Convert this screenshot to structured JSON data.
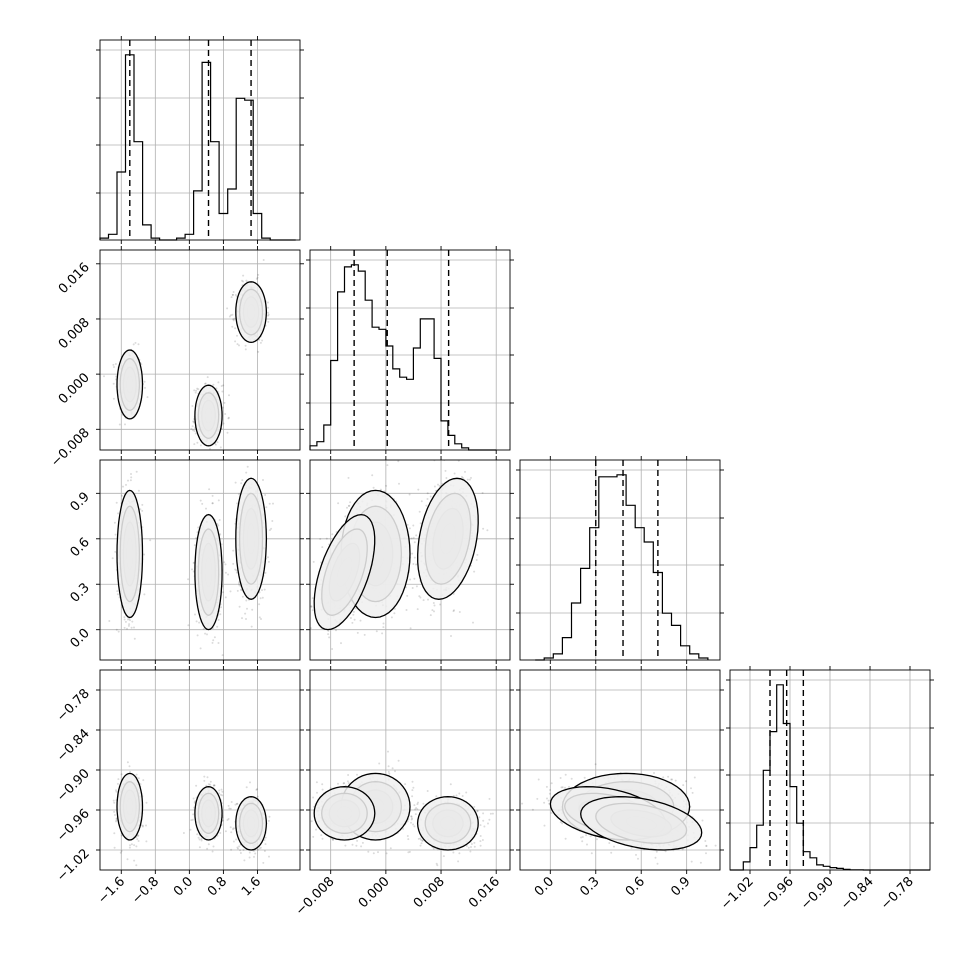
{
  "chart_data": {
    "type": "corner",
    "colors": {
      "points": "#000000",
      "contour_line": "#000000",
      "grid": "#b0b0b0"
    },
    "grid": true,
    "parameters": [
      {
        "id": "p1",
        "range": [
          -2.1,
          2.6
        ],
        "ticks": [
          -1.6,
          -0.8,
          0.0,
          0.8,
          1.6
        ],
        "tick_labels": [
          "−1.6",
          "−0.8",
          "0.0",
          "0.8",
          "1.6"
        ],
        "histogram": {
          "edges": [
            -2.1,
            -1.9,
            -1.7,
            -1.5,
            -1.3,
            -1.1,
            -0.9,
            -0.7,
            -0.5,
            -0.3,
            -0.1,
            0.1,
            0.3,
            0.5,
            0.7,
            0.9,
            1.1,
            1.3,
            1.5,
            1.7,
            1.9,
            2.1,
            2.3,
            2.5
          ],
          "counts": [
            0.01,
            0.03,
            0.36,
            0.98,
            0.52,
            0.08,
            0.01,
            0,
            0,
            0.01,
            0.03,
            0.26,
            0.94,
            0.52,
            0.14,
            0.27,
            0.75,
            0.74,
            0.14,
            0.01,
            0,
            0,
            0
          ]
        },
        "quantiles": [
          -1.4,
          0.45,
          1.45
        ]
      },
      {
        "id": "p2",
        "range": [
          -0.011,
          0.018
        ],
        "ticks": [
          -0.008,
          0.0,
          0.008,
          0.016
        ],
        "tick_labels": [
          "−0.008",
          "0.000",
          "0.008",
          "0.016"
        ],
        "histogram": {
          "edges": [
            -0.011,
            -0.01,
            -0.009,
            -0.008,
            -0.007,
            -0.006,
            -0.005,
            -0.004,
            -0.003,
            -0.002,
            -0.001,
            0.0,
            0.001,
            0.002,
            0.003,
            0.004,
            0.005,
            0.006,
            0.007,
            0.008,
            0.009,
            0.01,
            0.011,
            0.012,
            0.013,
            0.014,
            0.015,
            0.016
          ],
          "counts": [
            0.02,
            0.04,
            0.12,
            0.43,
            0.76,
            0.88,
            0.89,
            0.86,
            0.72,
            0.59,
            0.58,
            0.5,
            0.39,
            0.35,
            0.34,
            0.49,
            0.63,
            0.63,
            0.44,
            0.14,
            0.07,
            0.03,
            0.01,
            0,
            0,
            0,
            0
          ]
        },
        "quantiles": [
          -0.0046,
          0.0002,
          0.0091
        ]
      },
      {
        "id": "p3",
        "range": [
          -0.2,
          1.12
        ],
        "ticks": [
          0.0,
          0.3,
          0.6,
          0.9
        ],
        "tick_labels": [
          "0.0",
          "0.3",
          "0.6",
          "0.9"
        ],
        "histogram": {
          "edges": [
            -0.1,
            -0.04,
            0.02,
            0.08,
            0.14,
            0.2,
            0.26,
            0.32,
            0.38,
            0.44,
            0.5,
            0.56,
            0.62,
            0.68,
            0.74,
            0.8,
            0.86,
            0.92,
            0.98,
            1.04
          ],
          "counts": [
            0.0,
            0.01,
            0.03,
            0.11,
            0.28,
            0.45,
            0.65,
            0.9,
            0.9,
            0.91,
            0.76,
            0.65,
            0.58,
            0.43,
            0.23,
            0.17,
            0.07,
            0.03,
            0.01
          ]
        },
        "quantiles": [
          0.3,
          0.48,
          0.71
        ]
      },
      {
        "id": "p4",
        "range": [
          -1.05,
          -0.75
        ],
        "ticks": [
          -1.02,
          -0.96,
          -0.9,
          -0.84,
          -0.78
        ],
        "tick_labels": [
          "−1.02",
          "−0.96",
          "−0.90",
          "−0.84",
          "−0.78"
        ],
        "histogram": {
          "edges": [
            -1.05,
            -1.04,
            -1.03,
            -1.02,
            -1.01,
            -1.0,
            -0.99,
            -0.98,
            -0.97,
            -0.96,
            -0.95,
            -0.94,
            -0.93,
            -0.92,
            -0.91,
            -0.9,
            -0.89,
            -0.88,
            -0.87,
            -0.86,
            -0.85,
            -0.84,
            -0.83,
            -0.82,
            -0.81,
            -0.8,
            -0.79,
            -0.78,
            -0.77,
            -0.76,
            -0.75
          ],
          "counts": [
            0,
            0,
            0.04,
            0.11,
            0.22,
            0.49,
            0.68,
            0.91,
            0.72,
            0.41,
            0.23,
            0.09,
            0.06,
            0.025,
            0.018,
            0.012,
            0.008,
            0.003,
            0.001,
            0.001,
            0,
            0,
            0,
            0,
            0,
            0,
            0,
            0,
            0,
            0
          ]
        },
        "quantiles": [
          -0.99,
          -0.965,
          -0.94
        ]
      }
    ],
    "joint": {
      "clusters": [
        {
          "weight": 0.3,
          "mean": [
            -1.4,
            -0.0015,
            0.5,
            -0.955
          ],
          "sd": [
            0.15,
            0.0025,
            0.21,
            0.025
          ],
          "rho_23": 0,
          "rho_34": 0
        },
        {
          "weight": 0.33,
          "mean": [
            0.45,
            -0.006,
            0.38,
            -0.965
          ],
          "sd": [
            0.16,
            0.0022,
            0.19,
            0.02
          ],
          "rho_23": 0.55,
          "rho_34": -0.35
        },
        {
          "weight": 0.37,
          "mean": [
            1.45,
            0.009,
            0.6,
            -0.98
          ],
          "sd": [
            0.18,
            0.0022,
            0.2,
            0.02
          ],
          "rho_23": 0.3,
          "rho_34": -0.35
        }
      ],
      "contour_levels": [
        0.118,
        0.393,
        0.675,
        0.864
      ]
    }
  }
}
